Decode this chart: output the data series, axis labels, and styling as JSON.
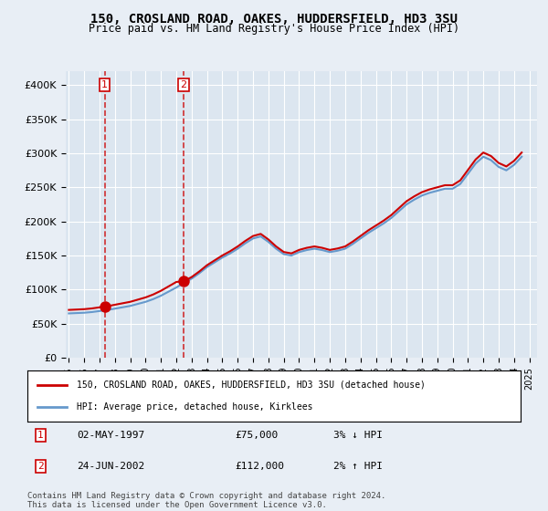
{
  "title": "150, CROSLAND ROAD, OAKES, HUDDERSFIELD, HD3 3SU",
  "subtitle": "Price paid vs. HM Land Registry's House Price Index (HPI)",
  "background_color": "#e8eef5",
  "plot_bg_color": "#dce6f0",
  "legend_label_red": "150, CROSLAND ROAD, OAKES, HUDDERSFIELD, HD3 3SU (detached house)",
  "legend_label_blue": "HPI: Average price, detached house, Kirklees",
  "footnote": "Contains HM Land Registry data © Crown copyright and database right 2024.\nThis data is licensed under the Open Government Licence v3.0.",
  "sale1_date": 1997.33,
  "sale1_price": 75000,
  "sale1_label": "1",
  "sale1_row": "02-MAY-1997    £75,000    3% ↓ HPI",
  "sale2_date": 2002.48,
  "sale2_price": 112000,
  "sale2_label": "2",
  "sale2_row": "24-JUN-2002    £112,000    2% ↑ HPI",
  "hpi_years": [
    1995,
    1995.5,
    1996,
    1996.5,
    1997,
    1997.5,
    1998,
    1998.5,
    1999,
    1999.5,
    2000,
    2000.5,
    2001,
    2001.5,
    2002,
    2002.5,
    2003,
    2003.5,
    2004,
    2004.5,
    2005,
    2005.5,
    2006,
    2006.5,
    2007,
    2007.5,
    2008,
    2008.5,
    2009,
    2009.5,
    2010,
    2010.5,
    2011,
    2011.5,
    2012,
    2012.5,
    2013,
    2013.5,
    2014,
    2014.5,
    2015,
    2015.5,
    2016,
    2016.5,
    2017,
    2017.5,
    2018,
    2018.5,
    2019,
    2019.5,
    2020,
    2020.5,
    2021,
    2021.5,
    2022,
    2022.5,
    2023,
    2023.5,
    2024,
    2024.5
  ],
  "hpi_values": [
    65000,
    65500,
    66000,
    67000,
    68500,
    70000,
    72000,
    74000,
    76000,
    79000,
    82000,
    86000,
    91000,
    97000,
    103000,
    110000,
    116000,
    124000,
    133000,
    140000,
    147000,
    153000,
    160000,
    168000,
    175000,
    178000,
    170000,
    160000,
    152000,
    150000,
    155000,
    158000,
    160000,
    158000,
    155000,
    157000,
    160000,
    167000,
    175000,
    183000,
    190000,
    197000,
    205000,
    215000,
    225000,
    232000,
    238000,
    242000,
    245000,
    248000,
    248000,
    255000,
    270000,
    285000,
    295000,
    290000,
    280000,
    275000,
    283000,
    295000
  ],
  "price_paid_years": [
    1997.33,
    2002.48
  ],
  "price_paid_values": [
    75000,
    112000
  ],
  "ylim": [
    0,
    420000
  ],
  "yticks": [
    0,
    50000,
    100000,
    150000,
    200000,
    250000,
    300000,
    350000,
    400000
  ],
  "xlim": [
    1994.8,
    2025.5
  ],
  "xtick_years": [
    1995,
    1996,
    1997,
    1998,
    1999,
    2000,
    2001,
    2002,
    2003,
    2004,
    2005,
    2006,
    2007,
    2008,
    2009,
    2010,
    2011,
    2012,
    2013,
    2014,
    2015,
    2016,
    2017,
    2018,
    2019,
    2020,
    2021,
    2022,
    2023,
    2024,
    2025
  ]
}
